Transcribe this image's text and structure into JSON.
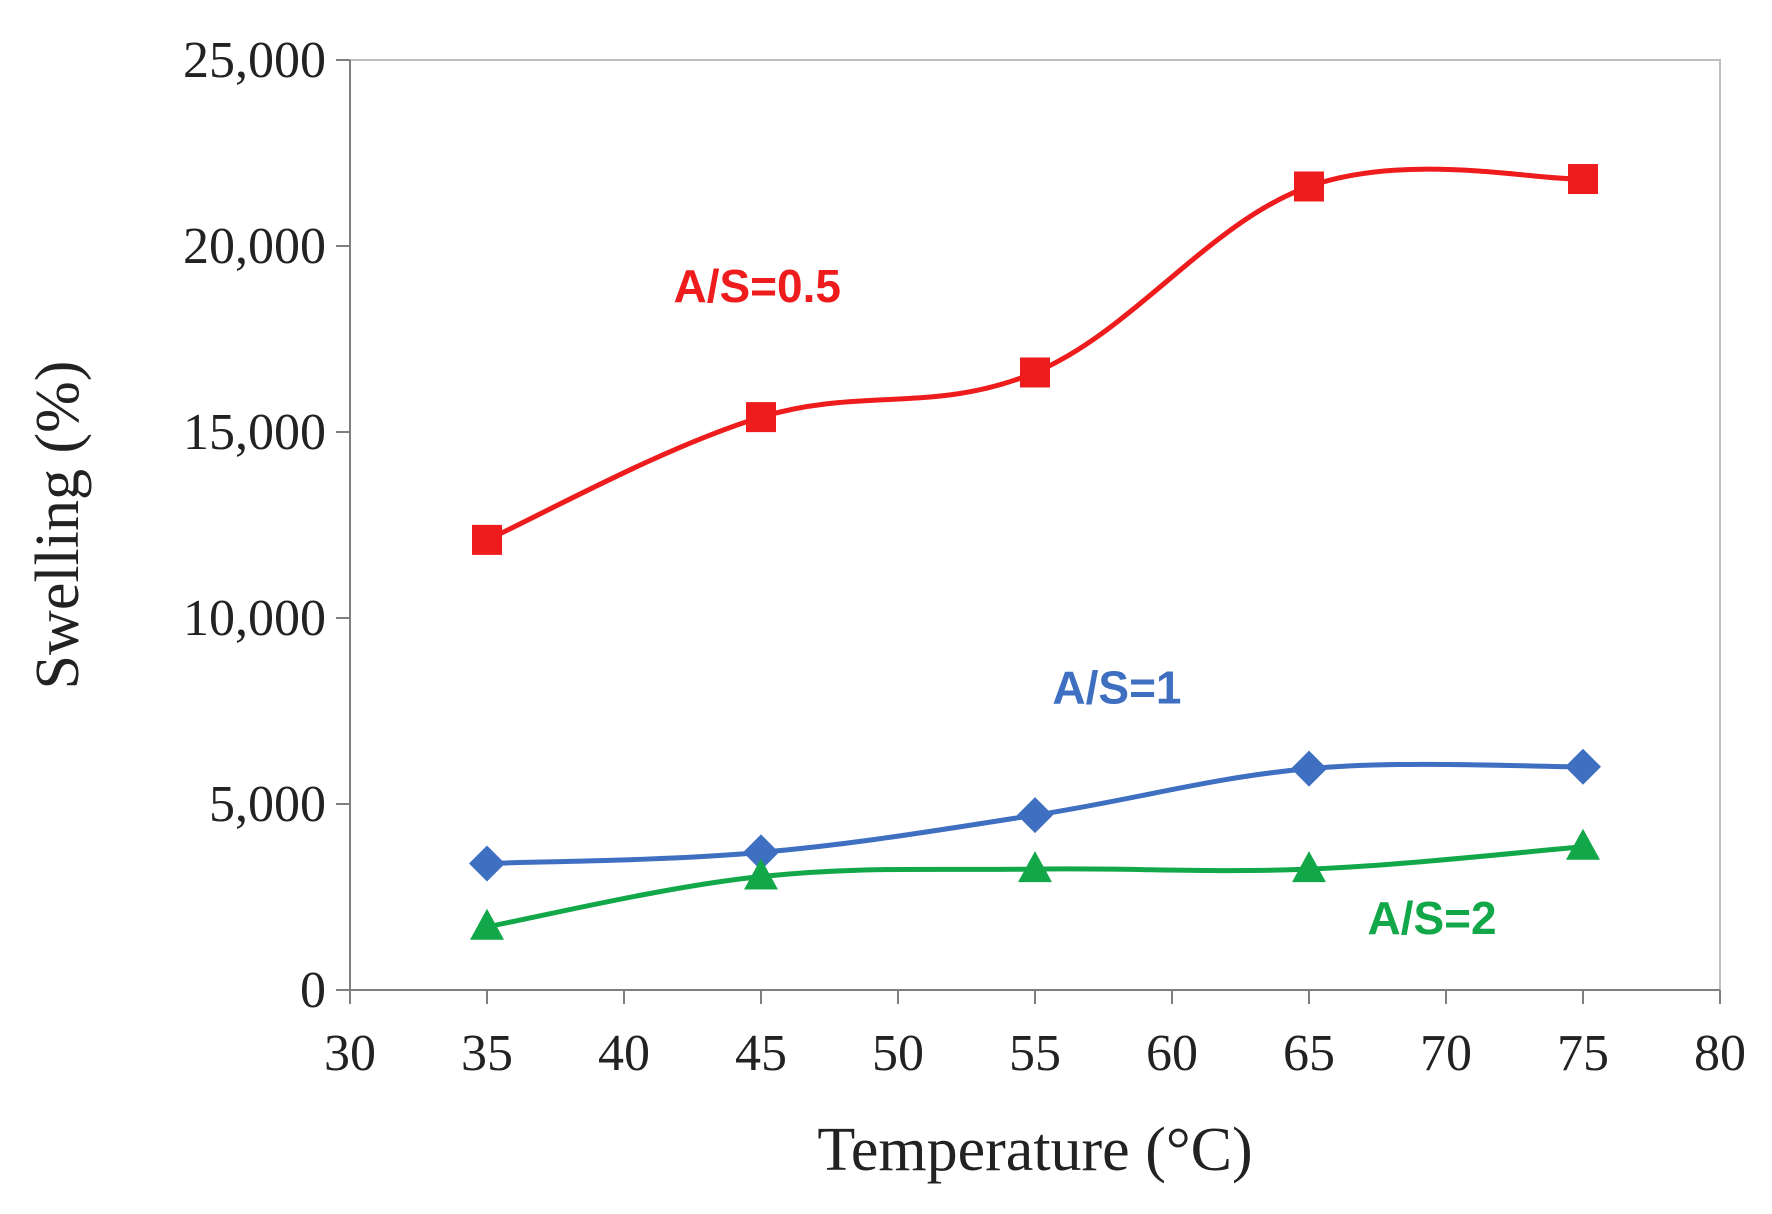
{
  "chart_data": {
    "type": "line",
    "title": "",
    "xlabel": "Temperature (°C)",
    "ylabel": "Swelling (%)",
    "xlim": [
      30,
      80
    ],
    "ylim": [
      0,
      25000
    ],
    "x_ticks": [
      "30",
      "35",
      "40",
      "45",
      "50",
      "55",
      "60",
      "65",
      "70",
      "75",
      "80"
    ],
    "y_ticks": [
      "0",
      "5,000",
      "10,000",
      "15,000",
      "20,000",
      "25,000"
    ],
    "x_tick_values": [
      30,
      35,
      40,
      45,
      50,
      55,
      60,
      65,
      70,
      75,
      80
    ],
    "y_tick_values": [
      0,
      5000,
      10000,
      15000,
      20000,
      25000
    ],
    "grid": false,
    "legend": "inline labels",
    "series": [
      {
        "name": "A/S=0.5",
        "label": "A/S=0.5",
        "color": "#ee1c1c",
        "marker": "square",
        "x": [
          35,
          45,
          55,
          65,
          75
        ],
        "values": [
          12100,
          15400,
          16600,
          21600,
          21800
        ]
      },
      {
        "name": "A/S=1",
        "label": "A/S=1",
        "color": "#3e6fc0",
        "marker": "diamond",
        "x": [
          35,
          45,
          55,
          65,
          75
        ],
        "values": [
          3400,
          3700,
          4700,
          5950,
          6000
        ]
      },
      {
        "name": "A/S=2",
        "label": "A/S=2",
        "color": "#12a84a",
        "marker": "triangle",
        "x": [
          35,
          45,
          55,
          65,
          75
        ],
        "values": [
          1700,
          3050,
          3250,
          3250,
          3850
        ]
      }
    ]
  }
}
